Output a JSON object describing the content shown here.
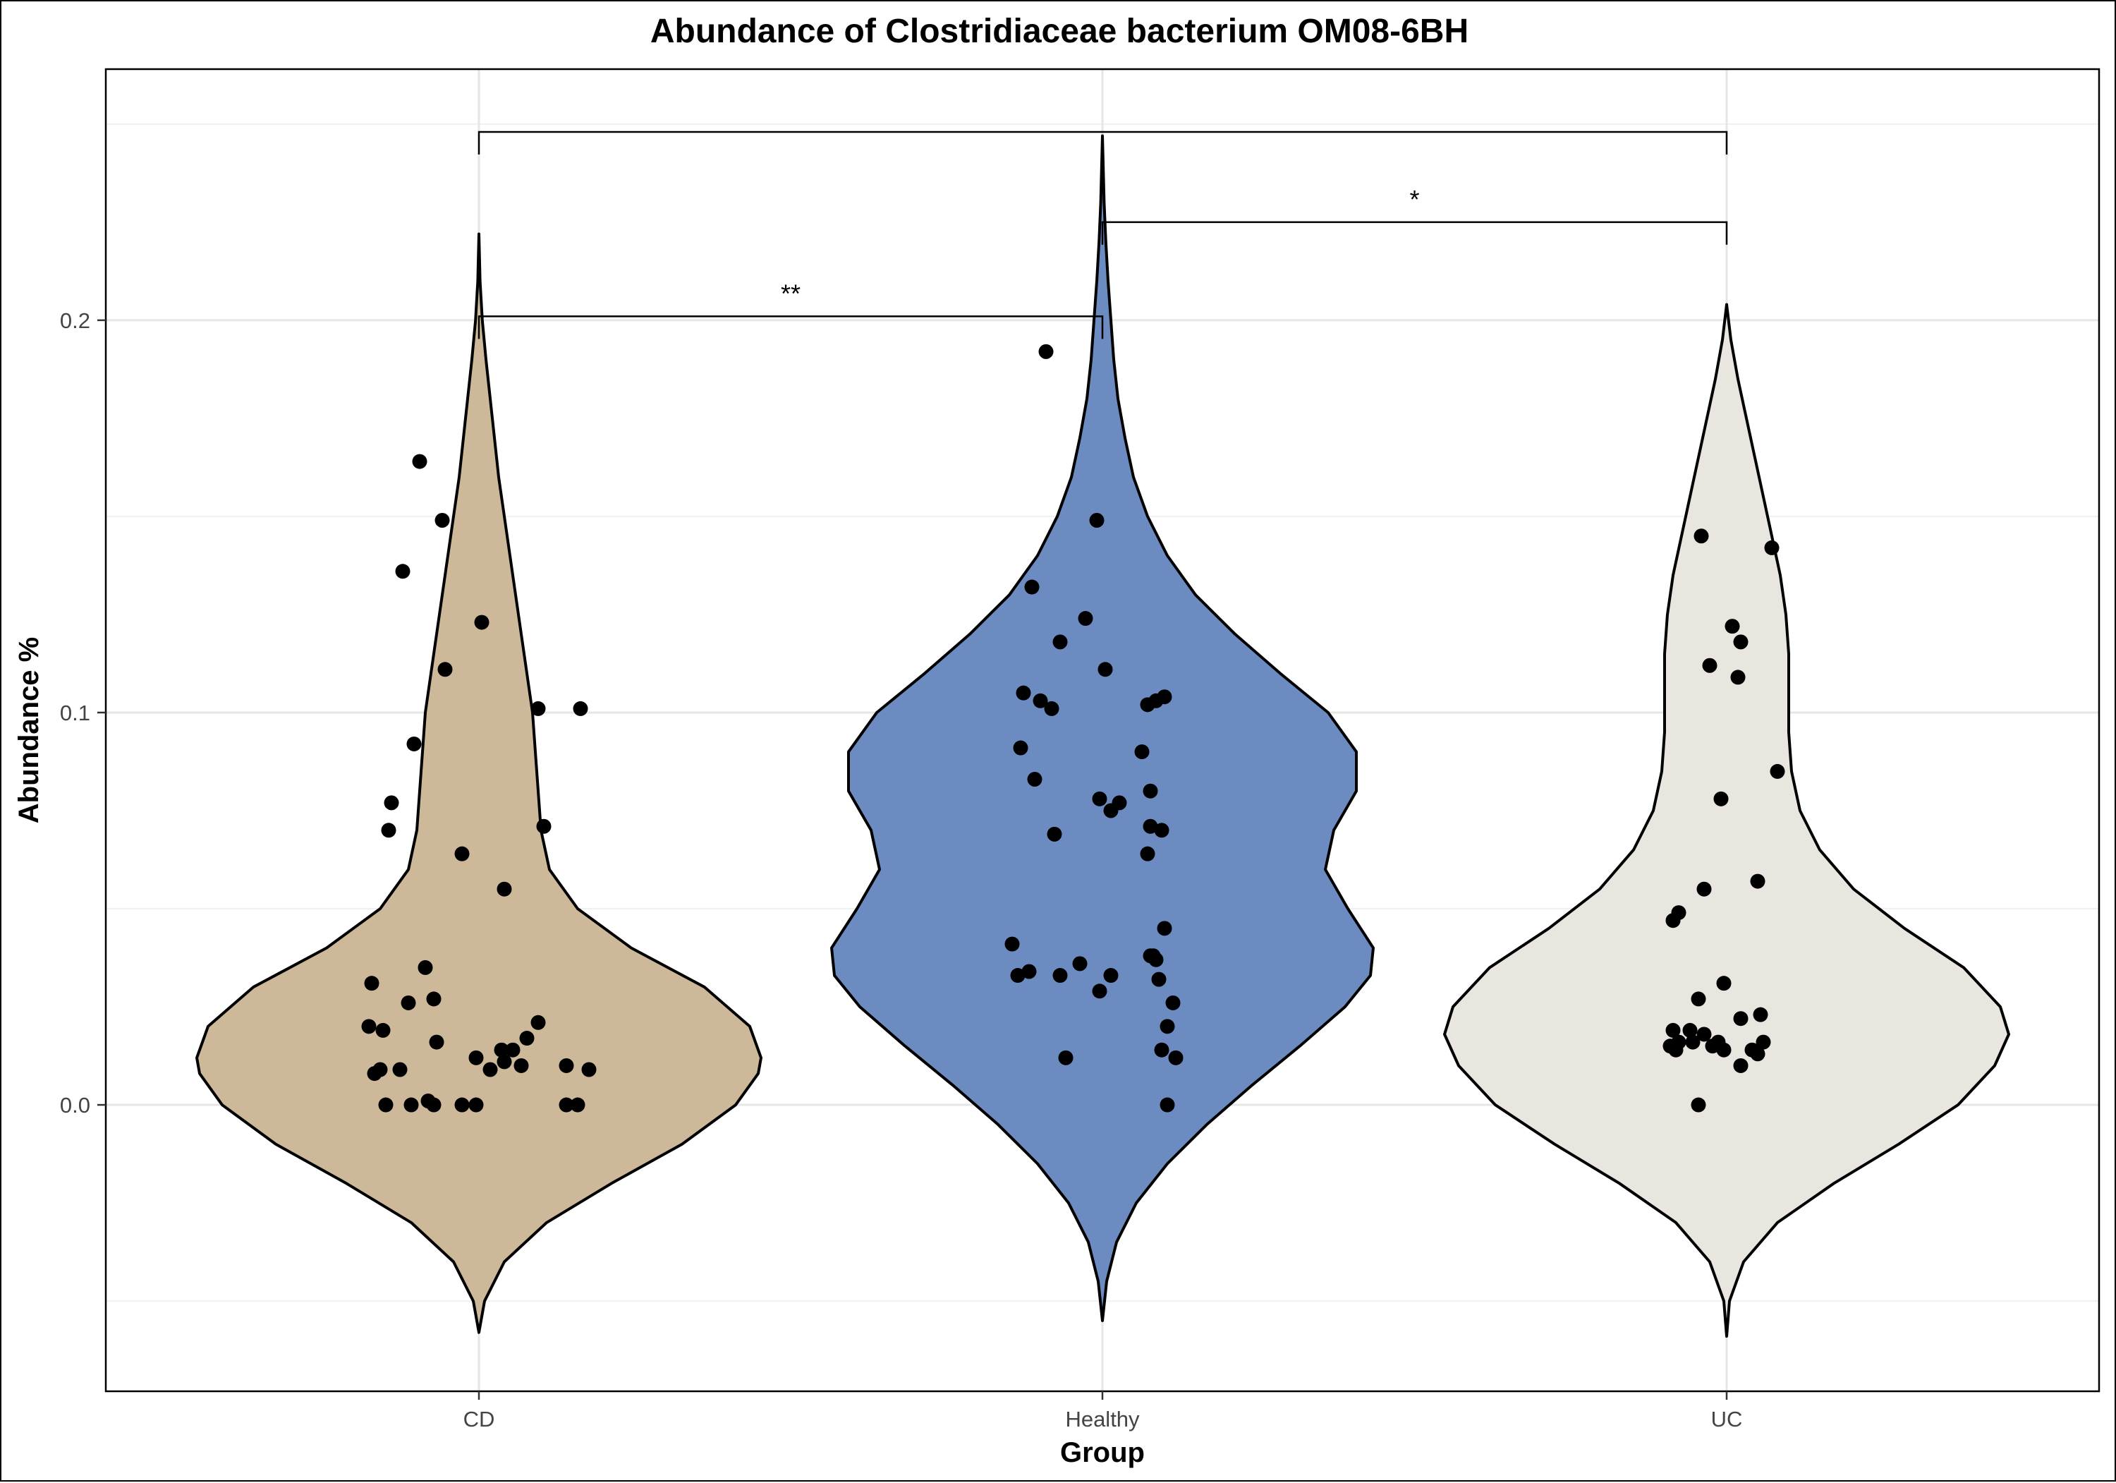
{
  "chart_data": {
    "type": "violin",
    "title": "Abundance of Clostridiaceae bacterium OM08-6BH",
    "xlabel": "Group",
    "ylabel": "Abundance %",
    "categories": [
      "CD",
      "Healthy",
      "UC"
    ],
    "ylim": [
      -0.073,
      0.264
    ],
    "yticks": [
      0.0,
      0.1,
      0.2
    ],
    "ytick_labels": [
      "0.0",
      "0.1",
      "0.2"
    ],
    "grid": true,
    "legend": "none",
    "colors": {
      "CD": "#CDB99A",
      "Healthy": "#6C8BC0",
      "UC": "#E9E6E0"
    },
    "groups": [
      {
        "name": "CD",
        "violin_profile": [
          [
            -0.058,
            0.0
          ],
          [
            -0.05,
            0.02
          ],
          [
            -0.04,
            0.09
          ],
          [
            -0.03,
            0.24
          ],
          [
            -0.02,
            0.47
          ],
          [
            -0.01,
            0.72
          ],
          [
            0.0,
            0.91
          ],
          [
            0.008,
            0.99
          ],
          [
            0.012,
            1.0
          ],
          [
            0.02,
            0.96
          ],
          [
            0.03,
            0.8
          ],
          [
            0.04,
            0.54
          ],
          [
            0.05,
            0.35
          ],
          [
            0.06,
            0.25
          ],
          [
            0.07,
            0.22
          ],
          [
            0.08,
            0.21
          ],
          [
            0.09,
            0.2
          ],
          [
            0.1,
            0.19
          ],
          [
            0.11,
            0.17
          ],
          [
            0.12,
            0.15
          ],
          [
            0.13,
            0.13
          ],
          [
            0.14,
            0.11
          ],
          [
            0.15,
            0.09
          ],
          [
            0.16,
            0.07
          ],
          [
            0.17,
            0.055
          ],
          [
            0.18,
            0.04
          ],
          [
            0.19,
            0.025
          ],
          [
            0.2,
            0.012
          ],
          [
            0.21,
            0.004
          ],
          [
            0.222,
            0.0
          ]
        ],
        "points": [
          [
            -0.21,
            0.164
          ],
          [
            -0.13,
            0.149
          ],
          [
            -0.27,
            0.136
          ],
          [
            0.01,
            0.123
          ],
          [
            -0.12,
            0.111
          ],
          [
            0.21,
            0.101
          ],
          [
            0.36,
            0.101
          ],
          [
            -0.23,
            0.092
          ],
          [
            -0.31,
            0.077
          ],
          [
            -0.32,
            0.07
          ],
          [
            0.23,
            0.071
          ],
          [
            -0.06,
            0.064
          ],
          [
            0.09,
            0.055
          ],
          [
            -0.19,
            0.035
          ],
          [
            -0.38,
            0.031
          ],
          [
            -0.16,
            0.027
          ],
          [
            -0.25,
            0.026
          ],
          [
            0.21,
            0.021
          ],
          [
            -0.39,
            0.02
          ],
          [
            -0.34,
            0.019
          ],
          [
            -0.15,
            0.016
          ],
          [
            0.17,
            0.017
          ],
          [
            0.12,
            0.014
          ],
          [
            0.08,
            0.014
          ],
          [
            0.09,
            0.011
          ],
          [
            -0.01,
            0.012
          ],
          [
            -0.28,
            0.009
          ],
          [
            -0.35,
            0.009
          ],
          [
            -0.37,
            0.008
          ],
          [
            0.15,
            0.01
          ],
          [
            0.04,
            0.009
          ],
          [
            0.31,
            0.01
          ],
          [
            0.39,
            0.009
          ],
          [
            -0.33,
            0.0
          ],
          [
            -0.24,
            0.0
          ],
          [
            -0.18,
            0.001
          ],
          [
            -0.16,
            0.0
          ],
          [
            -0.06,
            0.0
          ],
          [
            -0.01,
            0.0
          ],
          [
            0.31,
            0.0
          ],
          [
            0.35,
            0.0
          ]
        ]
      },
      {
        "name": "Healthy",
        "violin_profile": [
          [
            -0.055,
            0.0
          ],
          [
            -0.045,
            0.015
          ],
          [
            -0.035,
            0.05
          ],
          [
            -0.025,
            0.12
          ],
          [
            -0.015,
            0.23
          ],
          [
            -0.005,
            0.37
          ],
          [
            0.005,
            0.53
          ],
          [
            0.015,
            0.7
          ],
          [
            0.025,
            0.86
          ],
          [
            0.033,
            0.95
          ],
          [
            0.04,
            0.96
          ],
          [
            0.05,
            0.87
          ],
          [
            0.06,
            0.79
          ],
          [
            0.07,
            0.82
          ],
          [
            0.08,
            0.9
          ],
          [
            0.09,
            0.9
          ],
          [
            0.1,
            0.8
          ],
          [
            0.11,
            0.63
          ],
          [
            0.12,
            0.47
          ],
          [
            0.13,
            0.33
          ],
          [
            0.14,
            0.23
          ],
          [
            0.15,
            0.16
          ],
          [
            0.16,
            0.11
          ],
          [
            0.17,
            0.08
          ],
          [
            0.18,
            0.055
          ],
          [
            0.19,
            0.04
          ],
          [
            0.2,
            0.03
          ],
          [
            0.21,
            0.02
          ],
          [
            0.22,
            0.012
          ],
          [
            0.23,
            0.006
          ],
          [
            0.247,
            0.0
          ]
        ],
        "points": [
          [
            -0.2,
            0.192
          ],
          [
            -0.02,
            0.149
          ],
          [
            -0.25,
            0.132
          ],
          [
            -0.06,
            0.124
          ],
          [
            -0.15,
            0.118
          ],
          [
            0.01,
            0.111
          ],
          [
            -0.28,
            0.105
          ],
          [
            0.22,
            0.104
          ],
          [
            -0.22,
            0.103
          ],
          [
            0.16,
            0.102
          ],
          [
            0.19,
            0.103
          ],
          [
            -0.18,
            0.101
          ],
          [
            -0.29,
            0.091
          ],
          [
            0.14,
            0.09
          ],
          [
            -0.24,
            0.083
          ],
          [
            0.17,
            0.08
          ],
          [
            -0.01,
            0.078
          ],
          [
            0.06,
            0.077
          ],
          [
            0.03,
            0.075
          ],
          [
            -0.17,
            0.069
          ],
          [
            0.17,
            0.071
          ],
          [
            0.21,
            0.07
          ],
          [
            0.16,
            0.064
          ],
          [
            0.22,
            0.045
          ],
          [
            -0.32,
            0.041
          ],
          [
            0.17,
            0.038
          ],
          [
            0.18,
            0.038
          ],
          [
            0.19,
            0.037
          ],
          [
            -0.08,
            0.036
          ],
          [
            -0.26,
            0.034
          ],
          [
            -0.3,
            0.033
          ],
          [
            -0.15,
            0.033
          ],
          [
            0.03,
            0.033
          ],
          [
            0.2,
            0.032
          ],
          [
            -0.01,
            0.029
          ],
          [
            0.25,
            0.026
          ],
          [
            0.23,
            0.02
          ],
          [
            0.21,
            0.014
          ],
          [
            -0.13,
            0.012
          ],
          [
            0.26,
            0.012
          ],
          [
            0.23,
            0.0
          ]
        ]
      },
      {
        "name": "UC",
        "violin_profile": [
          [
            -0.059,
            0.0
          ],
          [
            -0.05,
            0.01
          ],
          [
            -0.04,
            0.06
          ],
          [
            -0.03,
            0.18
          ],
          [
            -0.02,
            0.38
          ],
          [
            -0.01,
            0.61
          ],
          [
            0.0,
            0.82
          ],
          [
            0.01,
            0.95
          ],
          [
            0.018,
            1.0
          ],
          [
            0.025,
            0.97
          ],
          [
            0.035,
            0.84
          ],
          [
            0.045,
            0.63
          ],
          [
            0.055,
            0.45
          ],
          [
            0.065,
            0.33
          ],
          [
            0.075,
            0.26
          ],
          [
            0.085,
            0.23
          ],
          [
            0.095,
            0.22
          ],
          [
            0.105,
            0.22
          ],
          [
            0.115,
            0.22
          ],
          [
            0.125,
            0.21
          ],
          [
            0.135,
            0.19
          ],
          [
            0.145,
            0.16
          ],
          [
            0.155,
            0.13
          ],
          [
            0.165,
            0.1
          ],
          [
            0.175,
            0.07
          ],
          [
            0.185,
            0.04
          ],
          [
            0.195,
            0.015
          ],
          [
            0.204,
            0.0
          ]
        ],
        "points": [
          [
            -0.09,
            0.145
          ],
          [
            0.16,
            0.142
          ],
          [
            0.02,
            0.122
          ],
          [
            0.05,
            0.118
          ],
          [
            -0.06,
            0.112
          ],
          [
            0.04,
            0.109
          ],
          [
            0.18,
            0.085
          ],
          [
            -0.02,
            0.078
          ],
          [
            0.11,
            0.057
          ],
          [
            -0.08,
            0.055
          ],
          [
            -0.17,
            0.049
          ],
          [
            -0.19,
            0.047
          ],
          [
            -0.01,
            0.031
          ],
          [
            -0.1,
            0.027
          ],
          [
            0.12,
            0.023
          ],
          [
            0.05,
            0.022
          ],
          [
            -0.19,
            0.019
          ],
          [
            -0.13,
            0.019
          ],
          [
            -0.08,
            0.018
          ],
          [
            -0.12,
            0.016
          ],
          [
            -0.17,
            0.016
          ],
          [
            -0.2,
            0.015
          ],
          [
            -0.05,
            0.015
          ],
          [
            -0.03,
            0.016
          ],
          [
            0.13,
            0.016
          ],
          [
            0.09,
            0.014
          ],
          [
            0.11,
            0.013
          ],
          [
            -0.01,
            0.014
          ],
          [
            -0.18,
            0.014
          ],
          [
            0.05,
            0.01
          ],
          [
            -0.1,
            0.0
          ]
        ]
      }
    ],
    "significance": [
      {
        "groups": [
          "CD",
          "Healthy"
        ],
        "label": "**",
        "y": 0.201
      },
      {
        "groups": [
          "Healthy",
          "UC"
        ],
        "label": "*",
        "y": 0.225
      },
      {
        "groups": [
          "CD",
          "UC"
        ],
        "label": "",
        "y": 0.248
      }
    ]
  }
}
